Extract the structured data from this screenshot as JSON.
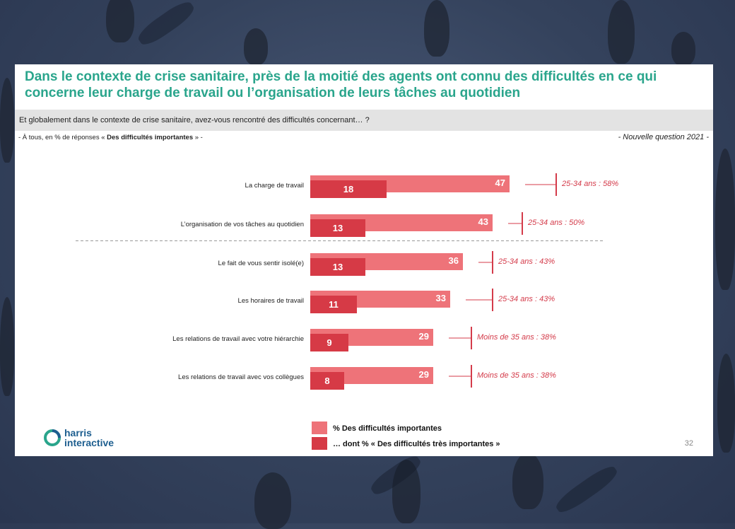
{
  "title": "Dans le contexte de crise sanitaire, près de la moitié des agents ont connu des difficultés en ce qui concerne leur charge de travail ou l’organisation de leurs tâches au quotidien",
  "question": "Et globalement dans le contexte de crise sanitaire, avez-vous rencontré des difficultés concernant… ?",
  "base_prefix": "- À tous, en % de réponses « ",
  "base_bold": "Des difficultés importantes",
  "base_suffix": " » -",
  "new_question": "- Nouvelle question 2021 -",
  "legend": {
    "series1": "% Des difficultés importantes",
    "series2": "… dont % « Des difficultés très importantes »"
  },
  "logo": {
    "line1": "harris",
    "line2": "interactive"
  },
  "page_number": "32",
  "colors": {
    "title": "#2aa58c",
    "series1": "#ee7379",
    "series2": "#d63a46",
    "annotation": "#d43b4a"
  },
  "chart_data": {
    "type": "bar",
    "orientation": "horizontal",
    "categories": [
      "La charge de travail",
      "L’organisation de vos tâches au quotidien",
      "Le fait de vous sentir isolé(e)",
      "Les horaires de travail",
      "Les relations de travail avec votre hiérarchie",
      "Les relations de travail avec vos collègues"
    ],
    "series": [
      {
        "name": "% Des difficultés importantes",
        "values": [
          47,
          43,
          36,
          33,
          29,
          29
        ]
      },
      {
        "name": "… dont % « Des difficultés très importantes »",
        "values": [
          18,
          13,
          13,
          11,
          9,
          8
        ]
      }
    ],
    "subgroup": [
      {
        "label": "25-34 ans : 58%",
        "value": 58
      },
      {
        "label": "25-34 ans : 50%",
        "value": 50
      },
      {
        "label": "25-34 ans : 43%",
        "value": 43
      },
      {
        "label": "25-34 ans : 43%",
        "value": 43
      },
      {
        "label": "Moins de 35 ans : 38%",
        "value": 38
      },
      {
        "label": "Moins de 35 ans : 38%",
        "value": 38
      }
    ],
    "separator_after_index": 1,
    "legend_position": "bottom",
    "grid": false
  }
}
